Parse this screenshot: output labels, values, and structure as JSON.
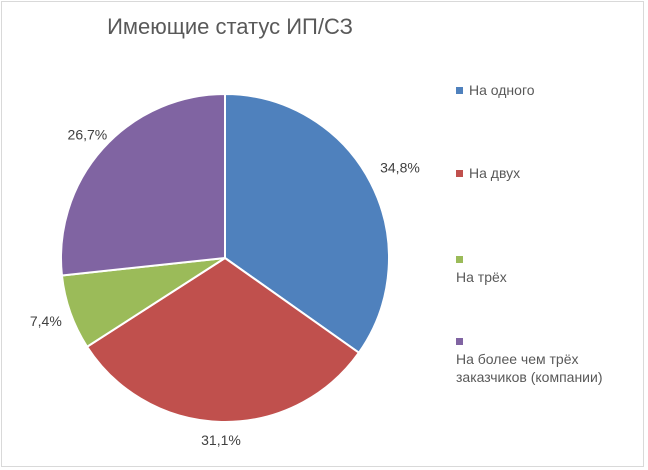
{
  "chart_data": {
    "type": "pie",
    "title": "Имеющие статус ИП/СЗ",
    "categories": [
      "На одного",
      "На двух",
      "На трёх",
      "На более чем трёх заказчиков (компании)"
    ],
    "values": [
      34.8,
      31.1,
      7.4,
      26.7
    ],
    "data_labels": [
      "34,8%",
      "31,1%",
      "7,4%",
      "26,7%"
    ],
    "colors": [
      "#4F81BD",
      "#C0504D",
      "#9BBB59",
      "#8064A2"
    ],
    "legend_placement": "right",
    "start_angle": "top, clockwise"
  }
}
